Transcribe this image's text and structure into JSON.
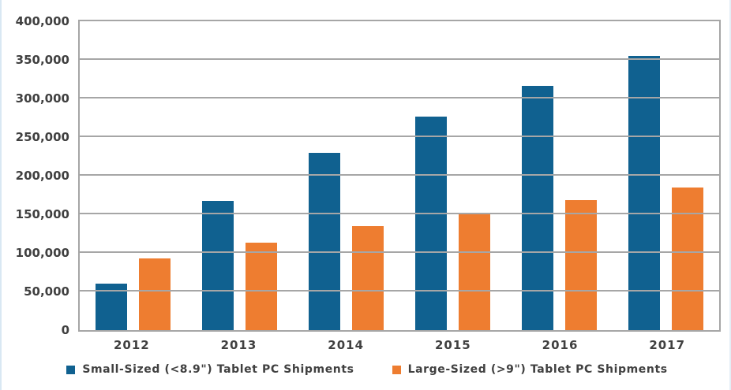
{
  "chart_data": {
    "type": "bar",
    "title": "",
    "xlabel": "",
    "ylabel": "",
    "categories": [
      "2012",
      "2013",
      "2014",
      "2015",
      "2016",
      "2017"
    ],
    "series": [
      {
        "name": "Small-Sized (<8.9\") Tablet PC Shipments",
        "color": "#106190",
        "values": [
          60000,
          167000,
          230000,
          277000,
          316000,
          355000
        ]
      },
      {
        "name": "Large-Sized (>9\") Tablet PC Shipments",
        "color": "#EE7D30",
        "values": [
          93000,
          113000,
          135000,
          151000,
          168000,
          185000
        ]
      }
    ],
    "ylim": [
      0,
      400000
    ],
    "yticks": [
      0,
      50000,
      100000,
      150000,
      200000,
      250000,
      300000,
      350000,
      400000
    ],
    "ytick_labels": [
      "0",
      "50,000",
      "100,000",
      "150,000",
      "200,000",
      "250,000",
      "300,000",
      "350,000",
      "400,000"
    ],
    "grid": "horizontal",
    "legend_position": "bottom"
  }
}
